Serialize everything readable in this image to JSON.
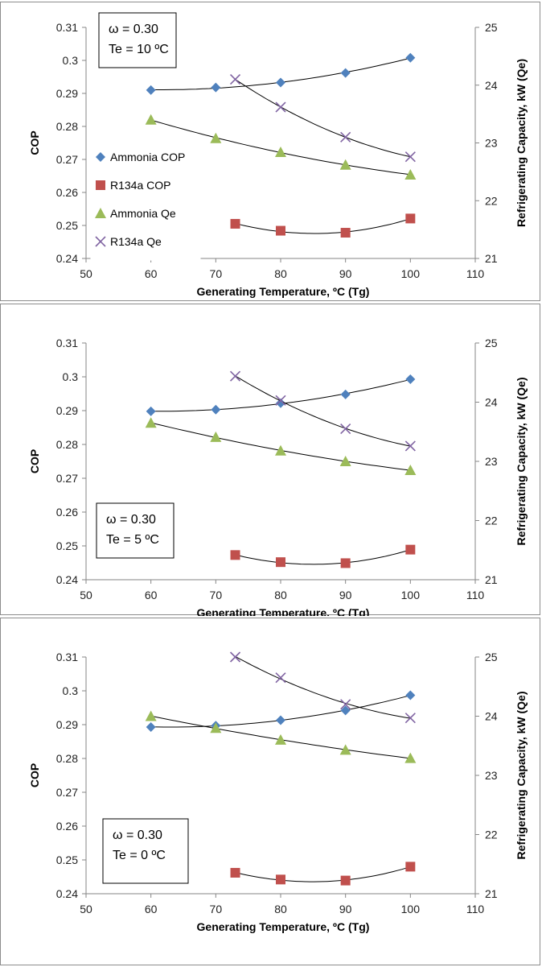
{
  "colors": {
    "ammonia_cop": "#4F81BD",
    "r134a_cop": "#C0504D",
    "ammonia_qe": "#9BBB59",
    "r134a_qe": "#8064A2"
  },
  "chart_data": [
    {
      "type": "scatter",
      "annotation": [
        "ω = 0.30",
        "Te = 10 ºC"
      ],
      "xlabel": "Generating Temperature, ºC (Tg)",
      "ylabel": "COP",
      "y2label": "Refrigerating Capacity, kW (Qe)",
      "xlim": [
        50,
        110
      ],
      "ylim": [
        0.24,
        0.31
      ],
      "y2lim": [
        21,
        25
      ],
      "xticks": [
        "50",
        "60",
        "70",
        "80",
        "90",
        "100",
        "110"
      ],
      "yticks": [
        "0.24",
        "0.25",
        "0.26",
        "0.27",
        "0.28",
        "0.29",
        "0.3",
        "0.31"
      ],
      "y2ticks": [
        "21",
        "22",
        "23",
        "24",
        "25"
      ],
      "legend": [
        "Ammonia COP",
        "R134a COP",
        "Ammonia Qe",
        "R134a Qe"
      ],
      "legend_position": "left",
      "series": [
        {
          "name": "Ammonia COP",
          "axis": "left",
          "marker": "diamond",
          "x": [
            60,
            70,
            80,
            90,
            100
          ],
          "y": [
            0.291,
            0.2918,
            0.2933,
            0.2962,
            0.3008
          ]
        },
        {
          "name": "R134a COP",
          "axis": "left",
          "marker": "square",
          "x": [
            73,
            80,
            90,
            100
          ],
          "y": [
            0.2505,
            0.2484,
            0.2478,
            0.2521
          ]
        },
        {
          "name": "Ammonia Qe",
          "axis": "right",
          "marker": "triangle",
          "x": [
            60,
            70,
            80,
            90,
            100
          ],
          "y": [
            23.4,
            23.08,
            22.84,
            22.62,
            22.45
          ]
        },
        {
          "name": "R134a Qe",
          "axis": "right",
          "marker": "x",
          "x": [
            73,
            80,
            90,
            100
          ],
          "y": [
            24.1,
            23.62,
            23.1,
            22.76
          ]
        }
      ]
    },
    {
      "type": "scatter",
      "annotation": [
        "ω = 0.30",
        "Te = 5 ºC"
      ],
      "xlabel": "Generating Temperature, ºC (Tg)",
      "ylabel": "COP",
      "y2label": "Refrigerating Capacity, kW (Qe)",
      "xlim": [
        50,
        110
      ],
      "ylim": [
        0.24,
        0.31
      ],
      "y2lim": [
        21,
        25
      ],
      "xticks": [
        "50",
        "60",
        "70",
        "80",
        "90",
        "100",
        "110"
      ],
      "yticks": [
        "0.24",
        "0.25",
        "0.26",
        "0.27",
        "0.28",
        "0.29",
        "0.3",
        "0.31"
      ],
      "y2ticks": [
        "21",
        "22",
        "23",
        "24",
        "25"
      ],
      "legend": [],
      "series": [
        {
          "name": "Ammonia COP",
          "axis": "left",
          "marker": "diamond",
          "x": [
            60,
            70,
            80,
            90,
            100
          ],
          "y": [
            0.2898,
            0.2903,
            0.2922,
            0.2948,
            0.2993
          ]
        },
        {
          "name": "R134a COP",
          "axis": "left",
          "marker": "square",
          "x": [
            73,
            80,
            90,
            100
          ],
          "y": [
            0.2473,
            0.2452,
            0.2449,
            0.2489
          ]
        },
        {
          "name": "Ammonia Qe",
          "axis": "right",
          "marker": "triangle",
          "x": [
            60,
            70,
            80,
            90,
            100
          ],
          "y": [
            23.65,
            23.41,
            23.18,
            23.0,
            22.85
          ]
        },
        {
          "name": "R134a Qe",
          "axis": "right",
          "marker": "x",
          "x": [
            73,
            80,
            90,
            100
          ],
          "y": [
            24.44,
            24.03,
            23.55,
            23.26
          ]
        }
      ]
    },
    {
      "type": "scatter",
      "annotation": [
        "ω = 0.30",
        "Te = 0 ºC"
      ],
      "xlabel": "Generating Temperature, ºC (Tg)",
      "ylabel": "COP",
      "y2label": "Refrigerating Capacity, kW (Qe)",
      "xlim": [
        50,
        110
      ],
      "ylim": [
        0.24,
        0.31
      ],
      "y2lim": [
        21,
        25
      ],
      "xticks": [
        "50",
        "60",
        "70",
        "80",
        "90",
        "100",
        "110"
      ],
      "yticks": [
        "0.24",
        "0.25",
        "0.26",
        "0.27",
        "0.28",
        "0.29",
        "0.3",
        "0.31"
      ],
      "y2ticks": [
        "21",
        "22",
        "23",
        "24",
        "25"
      ],
      "legend": [],
      "series": [
        {
          "name": "Ammonia COP",
          "axis": "left",
          "marker": "diamond",
          "x": [
            60,
            70,
            80,
            90,
            100
          ],
          "y": [
            0.2893,
            0.2897,
            0.2913,
            0.2942,
            0.2987
          ]
        },
        {
          "name": "R134a COP",
          "axis": "left",
          "marker": "square",
          "x": [
            73,
            80,
            90,
            100
          ],
          "y": [
            0.2462,
            0.2442,
            0.2439,
            0.248
          ]
        },
        {
          "name": "Ammonia Qe",
          "axis": "right",
          "marker": "triangle",
          "x": [
            60,
            70,
            80,
            90,
            100
          ],
          "y": [
            24.0,
            23.8,
            23.6,
            23.43,
            23.29
          ]
        },
        {
          "name": "R134a Qe",
          "axis": "right",
          "marker": "x",
          "x": [
            73,
            80,
            90,
            100
          ],
          "y": [
            25.0,
            24.65,
            24.2,
            23.97
          ]
        }
      ]
    }
  ]
}
